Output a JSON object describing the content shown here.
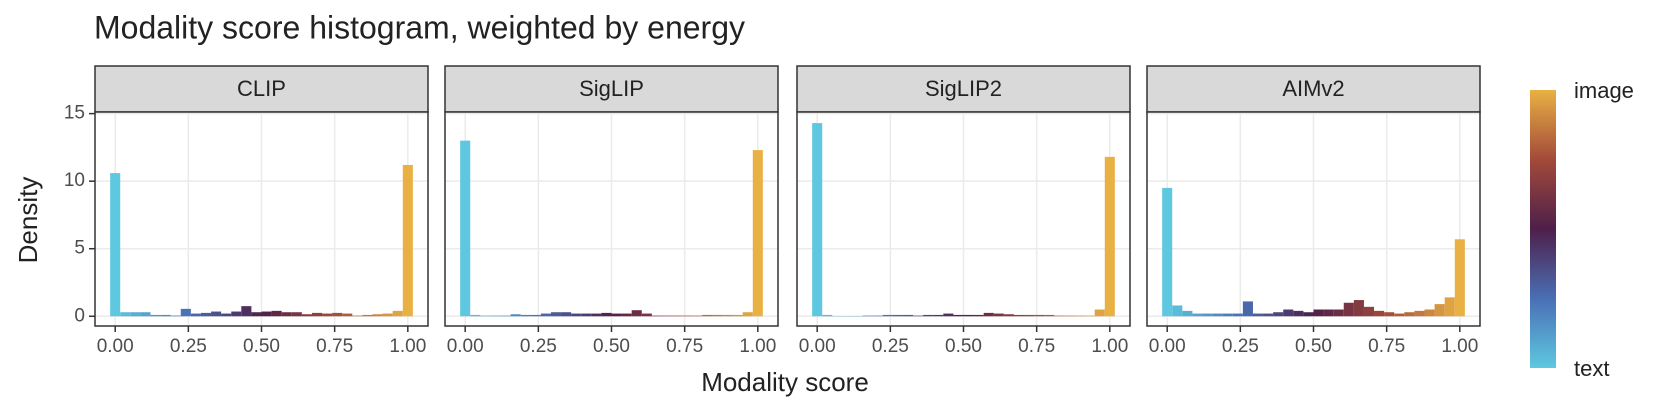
{
  "title": "Modality score histogram, weighted by energy",
  "x_label": "Modality score",
  "y_label": "Density",
  "colorbar": {
    "colors": [
      "#5ec8e0",
      "#4a6fb5",
      "#4e1f4a",
      "#a34a3a",
      "#e9b143"
    ],
    "labels": [
      "text",
      "image"
    ]
  },
  "chart_data": [
    {
      "type": "histogram",
      "title": "CLIP",
      "bins": [
        -0.0172,
        0.0172,
        0.0517,
        0.0862,
        0.1207,
        0.1552,
        0.1897,
        0.2241,
        0.2586,
        0.2931,
        0.3276,
        0.3621,
        0.3966,
        0.431,
        0.4655,
        0.5,
        0.5345,
        0.569,
        0.6034,
        0.6379,
        0.6724,
        0.7069,
        0.7414,
        0.7759,
        0.8103,
        0.8448,
        0.8793,
        0.9138,
        0.9483,
        0.9828,
        1.0172
      ],
      "values": [
        10.6,
        0.3,
        0.3,
        0.3,
        0.1,
        0.1,
        0.05,
        0.55,
        0.2,
        0.25,
        0.35,
        0.2,
        0.35,
        0.75,
        0.3,
        0.35,
        0.4,
        0.3,
        0.3,
        0.15,
        0.25,
        0.2,
        0.25,
        0.2,
        0.05,
        0.1,
        0.15,
        0.2,
        0.4,
        11.2
      ],
      "xlim": [
        -0.069,
        1.069
      ],
      "ylim": [
        -0.72,
        15.12
      ],
      "xticks": [
        {
          "value": 0,
          "label": "0.00"
        },
        {
          "value": 0.25,
          "label": "0.25"
        },
        {
          "value": 0.5,
          "label": "0.50"
        },
        {
          "value": 0.75,
          "label": "0.75"
        },
        {
          "value": 1,
          "label": "1.00"
        }
      ],
      "yticks": [
        0,
        5,
        10,
        15
      ],
      "grid": true
    },
    {
      "type": "histogram",
      "title": "SigLIP",
      "bins": [
        -0.0172,
        0.0172,
        0.0517,
        0.0862,
        0.1207,
        0.1552,
        0.1897,
        0.2241,
        0.2586,
        0.2931,
        0.3276,
        0.3621,
        0.3966,
        0.431,
        0.4655,
        0.5,
        0.5345,
        0.569,
        0.6034,
        0.6379,
        0.6724,
        0.7069,
        0.7414,
        0.7759,
        0.8103,
        0.8448,
        0.8793,
        0.9138,
        0.9483,
        0.9828,
        1.0172
      ],
      "values": [
        13.0,
        0.1,
        0.05,
        0.05,
        0.05,
        0.15,
        0.1,
        0.1,
        0.2,
        0.3,
        0.3,
        0.2,
        0.2,
        0.2,
        0.25,
        0.2,
        0.2,
        0.45,
        0.2,
        0.05,
        0.05,
        0.05,
        0.05,
        0.05,
        0.1,
        0.1,
        0.1,
        0.1,
        0.3,
        12.3
      ],
      "xlim": [
        -0.069,
        1.069
      ],
      "ylim": [
        -0.72,
        15.12
      ],
      "xticks": [
        {
          "value": 0,
          "label": "0.00"
        },
        {
          "value": 0.25,
          "label": "0.25"
        },
        {
          "value": 0.5,
          "label": "0.50"
        },
        {
          "value": 0.75,
          "label": "0.75"
        },
        {
          "value": 1,
          "label": "1.00"
        }
      ],
      "yticks": [
        0,
        5,
        10,
        15
      ],
      "grid": true
    },
    {
      "type": "histogram",
      "title": "SigLIP2",
      "bins": [
        -0.0172,
        0.0172,
        0.0517,
        0.0862,
        0.1207,
        0.1552,
        0.1897,
        0.2241,
        0.2586,
        0.2931,
        0.3276,
        0.3621,
        0.3966,
        0.431,
        0.4655,
        0.5,
        0.5345,
        0.569,
        0.6034,
        0.6379,
        0.6724,
        0.7069,
        0.7414,
        0.7759,
        0.8103,
        0.8448,
        0.8793,
        0.9138,
        0.9483,
        0.9828,
        1.0172
      ],
      "values": [
        14.3,
        0.1,
        0.02,
        0.02,
        0.02,
        0.05,
        0.05,
        0.1,
        0.1,
        0.1,
        0.05,
        0.1,
        0.1,
        0.2,
        0.1,
        0.1,
        0.1,
        0.25,
        0.2,
        0.15,
        0.1,
        0.1,
        0.1,
        0.1,
        0.05,
        0.05,
        0.05,
        0.05,
        0.5,
        11.8
      ],
      "xlim": [
        -0.069,
        1.069
      ],
      "ylim": [
        -0.72,
        15.12
      ],
      "xticks": [
        {
          "value": 0,
          "label": "0.00"
        },
        {
          "value": 0.25,
          "label": "0.25"
        },
        {
          "value": 0.5,
          "label": "0.50"
        },
        {
          "value": 0.75,
          "label": "0.75"
        },
        {
          "value": 1,
          "label": "1.00"
        }
      ],
      "yticks": [
        0,
        5,
        10,
        15
      ],
      "grid": true
    },
    {
      "type": "histogram",
      "title": "AIMv2",
      "bins": [
        -0.0172,
        0.0172,
        0.0517,
        0.0862,
        0.1207,
        0.1552,
        0.1897,
        0.2241,
        0.2586,
        0.2931,
        0.3276,
        0.3621,
        0.3966,
        0.431,
        0.4655,
        0.5,
        0.5345,
        0.569,
        0.6034,
        0.6379,
        0.6724,
        0.7069,
        0.7414,
        0.7759,
        0.8103,
        0.8448,
        0.8793,
        0.9138,
        0.9483,
        0.9828,
        1.0172
      ],
      "values": [
        9.5,
        0.8,
        0.4,
        0.2,
        0.2,
        0.2,
        0.2,
        0.2,
        1.1,
        0.2,
        0.2,
        0.3,
        0.5,
        0.4,
        0.3,
        0.5,
        0.5,
        0.5,
        1.0,
        1.2,
        0.7,
        0.4,
        0.3,
        0.2,
        0.3,
        0.4,
        0.5,
        0.9,
        1.4,
        5.7
      ],
      "xlim": [
        -0.069,
        1.069
      ],
      "ylim": [
        -0.72,
        15.12
      ],
      "xticks": [
        {
          "value": 0,
          "label": "0.00"
        },
        {
          "value": 0.25,
          "label": "0.25"
        },
        {
          "value": 0.5,
          "label": "0.50"
        },
        {
          "value": 0.75,
          "label": "0.75"
        },
        {
          "value": 1,
          "label": "1.00"
        }
      ],
      "yticks": [
        0,
        5,
        10,
        15
      ],
      "grid": true
    }
  ]
}
